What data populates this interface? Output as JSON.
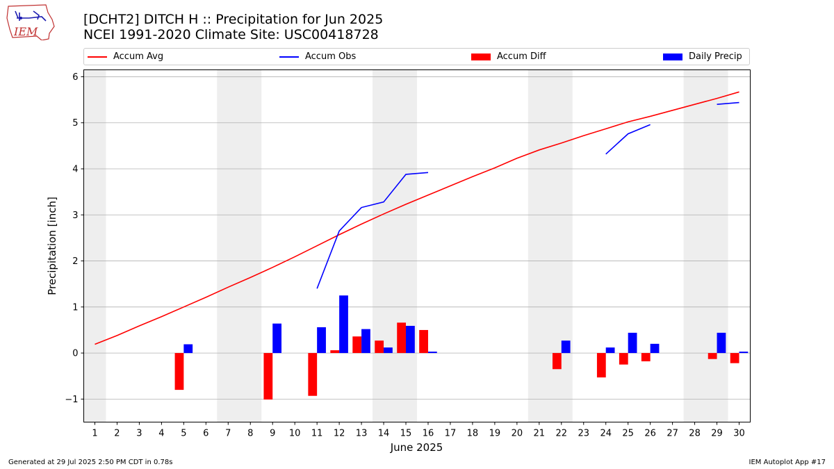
{
  "title_line1": "[DCHT2] DITCH H :: Precipitation for Jun 2025",
  "title_line2": "NCEI 1991-2020 Climate Site: USC00418728",
  "logo_text": "IEM",
  "footer_left": "Generated at 29 Jul 2025 2:50 PM CDT in 0.78s",
  "footer_right": "IEM Autoplot App #17",
  "legend": [
    {
      "label": "Accum Avg",
      "kind": "line",
      "color": "#ff0000"
    },
    {
      "label": "Accum Obs",
      "kind": "line",
      "color": "#0000ff"
    },
    {
      "label": "Accum Diff",
      "kind": "box",
      "color": "#ff0000"
    },
    {
      "label": "Daily Precip",
      "kind": "box",
      "color": "#0000ff"
    }
  ],
  "chart_data": {
    "type": "bar",
    "xlabel": "June 2025",
    "ylabel": "Precipitation [inch]",
    "ylim": [
      -1.5,
      6.15
    ],
    "yticks": [
      -1,
      0,
      1,
      2,
      3,
      4,
      5,
      6
    ],
    "ytick_labels": [
      "−1",
      "0",
      "1",
      "2",
      "3",
      "4",
      "5",
      "6"
    ],
    "grid": "horizontal",
    "weekend_shading": [
      [
        0.5,
        1.5
      ],
      [
        6.5,
        8.5
      ],
      [
        13.5,
        15.5
      ],
      [
        20.5,
        22.5
      ],
      [
        27.5,
        29.5
      ]
    ],
    "days": [
      1,
      2,
      3,
      4,
      5,
      6,
      7,
      8,
      9,
      10,
      11,
      12,
      13,
      14,
      15,
      16,
      17,
      18,
      19,
      20,
      21,
      22,
      23,
      24,
      25,
      26,
      27,
      28,
      29,
      30
    ],
    "series": [
      {
        "name": "Accum Avg",
        "kind": "line",
        "color": "#ff0000",
        "values": [
          0.19,
          0.38,
          0.59,
          0.79,
          1.0,
          1.21,
          1.43,
          1.64,
          1.86,
          2.09,
          2.33,
          2.57,
          2.8,
          3.02,
          3.23,
          3.43,
          3.63,
          3.83,
          4.02,
          4.23,
          4.41,
          4.56,
          4.72,
          4.87,
          5.02,
          5.14,
          5.27,
          5.4,
          5.53,
          5.67
        ]
      },
      {
        "name": "Accum Obs",
        "kind": "line",
        "color": "#0000ff",
        "values": [
          null,
          null,
          null,
          null,
          null,
          null,
          null,
          null,
          null,
          null,
          1.4,
          2.65,
          3.16,
          3.28,
          3.88,
          3.92,
          null,
          null,
          null,
          null,
          null,
          null,
          null,
          4.32,
          4.76,
          4.96,
          null,
          null,
          5.4,
          5.44
        ]
      },
      {
        "name": "Accum Diff",
        "kind": "bar",
        "color": "#ff0000",
        "values": [
          0,
          0,
          0,
          0,
          -0.8,
          0,
          0,
          0,
          -1.01,
          0,
          -0.93,
          0.06,
          0.36,
          0.27,
          0.66,
          0.5,
          0,
          0,
          0,
          0,
          0,
          -0.35,
          0,
          -0.53,
          -0.25,
          -0.18,
          0,
          0,
          -0.13,
          -0.22
        ]
      },
      {
        "name": "Daily Precip",
        "kind": "bar",
        "color": "#0000ff",
        "values": [
          0,
          0,
          0,
          0,
          0.19,
          0,
          0,
          0,
          0.64,
          0,
          0.56,
          1.25,
          0.52,
          0.12,
          0.59,
          0.03,
          0,
          0,
          0,
          0,
          0,
          0.27,
          0,
          0.12,
          0.44,
          0.2,
          0,
          0,
          0.44,
          0.03
        ]
      }
    ]
  }
}
